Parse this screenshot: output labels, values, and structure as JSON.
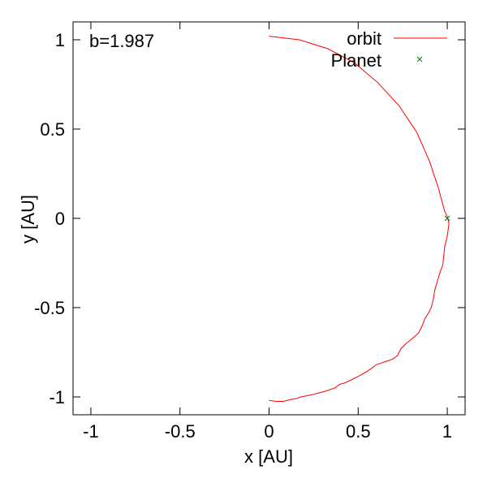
{
  "chart_data": {
    "type": "line",
    "title": "",
    "xlabel": "x [AU]",
    "ylabel": "y [AU]",
    "xlim": [
      -1.1,
      1.1
    ],
    "ylim": [
      -1.1,
      1.1
    ],
    "xticks": [
      -1,
      -0.5,
      0,
      0.5,
      1
    ],
    "yticks": [
      -1,
      -0.5,
      0,
      0.5,
      1
    ],
    "xtick_labels": [
      "-1",
      "-0.5",
      "0",
      "0.5",
      "1"
    ],
    "ytick_labels": [
      "-1",
      "-0.5",
      "0",
      "0.5",
      "1"
    ],
    "grid": false,
    "legend_position": "top-right",
    "annotation": "b=1.987",
    "series": [
      {
        "name": "orbit",
        "kind": "line",
        "color": "#ff0000",
        "x": [
          0.0,
          0.17,
          0.33,
          0.48,
          0.61,
          0.73,
          0.83,
          0.9,
          0.95,
          0.985,
          1.0,
          1.01,
          1.0,
          0.985,
          0.975,
          0.96,
          0.945,
          0.93,
          0.92,
          0.91,
          0.895,
          0.875,
          0.86,
          0.84,
          0.82,
          0.795,
          0.77,
          0.74,
          0.72,
          0.69,
          0.66,
          0.63,
          0.6,
          0.575,
          0.545,
          0.51,
          0.47,
          0.43,
          0.395,
          0.37,
          0.34,
          0.31,
          0.27,
          0.23,
          0.205,
          0.18,
          0.15,
          0.12,
          0.08,
          0.04,
          0.0
        ],
        "y": [
          1.02,
          1.0,
          0.95,
          0.87,
          0.76,
          0.63,
          0.48,
          0.32,
          0.17,
          0.04,
          0.01,
          -0.03,
          -0.1,
          -0.16,
          -0.26,
          -0.3,
          -0.35,
          -0.4,
          -0.46,
          -0.5,
          -0.53,
          -0.56,
          -0.6,
          -0.64,
          -0.66,
          -0.68,
          -0.7,
          -0.73,
          -0.77,
          -0.79,
          -0.8,
          -0.81,
          -0.82,
          -0.84,
          -0.86,
          -0.88,
          -0.9,
          -0.92,
          -0.93,
          -0.95,
          -0.96,
          -0.97,
          -0.98,
          -0.99,
          -0.995,
          -1.0,
          -1.01,
          -1.015,
          -1.025,
          -1.025,
          -1.02
        ]
      },
      {
        "name": "Planet",
        "kind": "points",
        "marker": "x",
        "color": "#008000",
        "x": [
          1.0
        ],
        "y": [
          0.0
        ]
      }
    ]
  }
}
